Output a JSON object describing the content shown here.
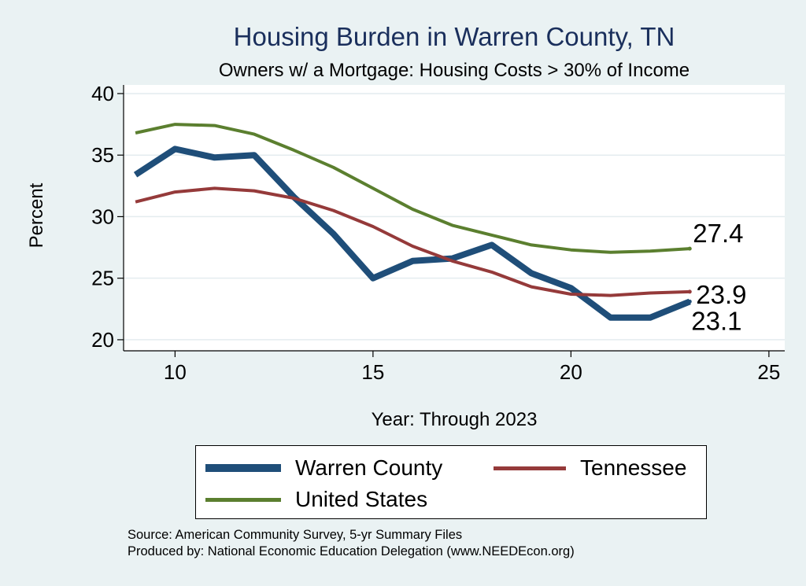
{
  "chart_data": {
    "type": "line",
    "title": "Housing Burden in Warren County, TN",
    "subtitle": "Owners w/ a Mortgage: Housing Costs > 30% of Income",
    "xlabel": "Year: Through 2023",
    "ylabel": "Percent",
    "xlim": [
      8.7,
      25.4
    ],
    "ylim": [
      19.1,
      40.7
    ],
    "xticks": [
      10,
      15,
      20,
      25
    ],
    "yticks": [
      20,
      25,
      30,
      35,
      40
    ],
    "grid": true,
    "legend_position": "bottom",
    "series": [
      {
        "name": "Warren County",
        "color": "#1f4e79",
        "x": [
          9,
          10,
          11,
          12,
          13,
          14,
          15,
          16,
          17,
          18,
          19,
          20,
          21,
          22,
          23
        ],
        "values": [
          33.4,
          35.5,
          34.8,
          35.0,
          31.6,
          28.6,
          25.0,
          26.4,
          26.6,
          27.7,
          25.4,
          24.2,
          21.8,
          21.8,
          23.1
        ],
        "end_label": "23.1"
      },
      {
        "name": "Tennessee",
        "color": "#953a3a",
        "x": [
          9,
          10,
          11,
          12,
          13,
          14,
          15,
          16,
          17,
          18,
          19,
          20,
          21,
          22,
          23
        ],
        "values": [
          31.2,
          32.0,
          32.3,
          32.1,
          31.5,
          30.5,
          29.2,
          27.6,
          26.4,
          25.5,
          24.3,
          23.7,
          23.6,
          23.8,
          23.9
        ],
        "end_label": "23.9"
      },
      {
        "name": "United States",
        "color": "#5b7f2f",
        "x": [
          9,
          10,
          11,
          12,
          13,
          14,
          15,
          16,
          17,
          18,
          19,
          20,
          21,
          22,
          23
        ],
        "values": [
          36.8,
          37.5,
          37.4,
          36.7,
          35.4,
          34.0,
          32.3,
          30.6,
          29.3,
          28.5,
          27.7,
          27.3,
          27.1,
          27.2,
          27.4
        ],
        "end_label": "27.4"
      }
    ]
  },
  "footnotes": {
    "source": "Source: American Community Survey, 5-yr Summary Files",
    "produced": "Produced by: National Economic Education Delegation (www.NEEDEcon.org)"
  }
}
